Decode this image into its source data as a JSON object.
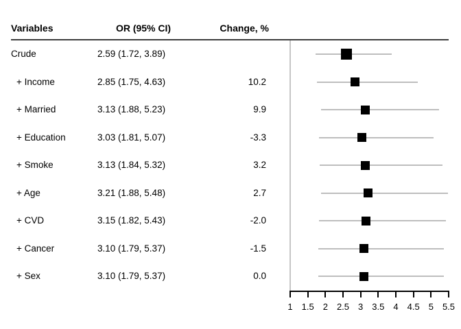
{
  "header": {
    "col_variables": "Variables",
    "col_or": "OR (95% CI)",
    "col_change": "Change, %"
  },
  "chart_data": {
    "type": "forest",
    "title": "",
    "xlabel": "",
    "x_axis": {
      "min": 1,
      "max": 5.5,
      "ticks": [
        1,
        1.5,
        2,
        2.5,
        3,
        3.5,
        4,
        4.5,
        5,
        5.5
      ]
    },
    "rows": [
      {
        "label": "Crude",
        "or_ci": "2.59 (1.72, 3.89)",
        "change": "",
        "or": 2.59,
        "lo": 1.72,
        "hi": 3.89,
        "marker_px": 16
      },
      {
        "label": "+ Income",
        "or_ci": "2.85 (1.75, 4.63)",
        "change": "10.2",
        "or": 2.85,
        "lo": 1.75,
        "hi": 4.63,
        "marker_px": 13
      },
      {
        "label": "+ Married",
        "or_ci": "3.13 (1.88, 5.23)",
        "change": "9.9",
        "or": 3.13,
        "lo": 1.88,
        "hi": 5.23,
        "marker_px": 13
      },
      {
        "label": "+ Education",
        "or_ci": "3.03 (1.81, 5.07)",
        "change": "-3.3",
        "or": 3.03,
        "lo": 1.81,
        "hi": 5.07,
        "marker_px": 13
      },
      {
        "label": "+ Smoke",
        "or_ci": "3.13 (1.84, 5.32)",
        "change": "3.2",
        "or": 3.13,
        "lo": 1.84,
        "hi": 5.32,
        "marker_px": 13
      },
      {
        "label": "+ Age",
        "or_ci": "3.21 (1.88, 5.48)",
        "change": "2.7",
        "or": 3.21,
        "lo": 1.88,
        "hi": 5.48,
        "marker_px": 13
      },
      {
        "label": "+ CVD",
        "or_ci": "3.15 (1.82, 5.43)",
        "change": "-2.0",
        "or": 3.15,
        "lo": 1.82,
        "hi": 5.43,
        "marker_px": 13
      },
      {
        "label": "+ Cancer",
        "or_ci": "3.10 (1.79, 5.37)",
        "change": "-1.5",
        "or": 3.1,
        "lo": 1.79,
        "hi": 5.37,
        "marker_px": 13
      },
      {
        "label": "+ Sex",
        "or_ci": "3.10 (1.79, 5.37)",
        "change": "0.0",
        "or": 3.1,
        "lo": 1.79,
        "hi": 5.37,
        "marker_px": 13
      }
    ],
    "colors": {
      "marker": "#000000",
      "ci_line": "#bdbdbd",
      "axis": "#000000",
      "frame_line": "#c6c6c6",
      "header_rule": "#3d3d3d",
      "text": "#000000"
    },
    "legend": null,
    "grid": false
  }
}
